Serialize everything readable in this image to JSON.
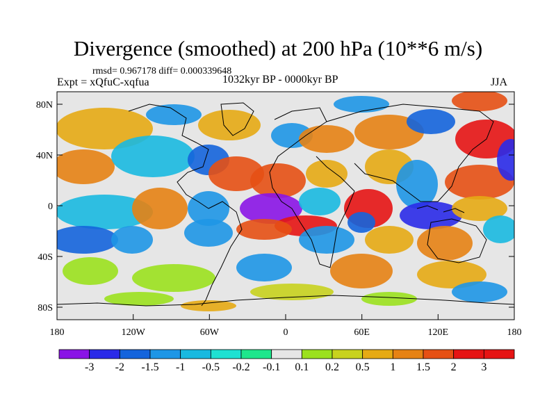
{
  "title": "Divergence (smoothed) at 200 hPa (10**6 m/s)",
  "stats": "rmsd= 0.967178 diff= 0.000339648",
  "experiment": "Expt = xQfuC-xqfua",
  "period": "1032kyr BP - 0000kyr BP",
  "season": "JJA",
  "x_ticks": [
    "180",
    "120W",
    "60W",
    "0",
    "60E",
    "120E",
    "180"
  ],
  "y_ticks": [
    "80N",
    "40N",
    "0",
    "40S",
    "80S"
  ],
  "colorbar": {
    "labels": [
      "-3",
      "-2",
      "-1.5",
      "-1",
      "-0.5",
      "-0.2",
      "-0.1",
      "0.1",
      "0.2",
      "0.5",
      "1",
      "1.5",
      "2",
      "3"
    ],
    "colors": [
      "#8a14e6",
      "#2a2ae8",
      "#1464dc",
      "#1e96e6",
      "#19b9e0",
      "#1ee1d2",
      "#1ee68c",
      "#e6e6e6",
      "#9be11e",
      "#c8d21e",
      "#e6aa14",
      "#e68214",
      "#e65014",
      "#e61414",
      "#e61414"
    ]
  },
  "palette": {
    "neutral": "#e6e6e6",
    "coast": "#000000"
  }
}
